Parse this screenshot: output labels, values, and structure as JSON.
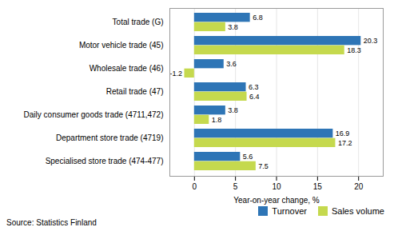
{
  "chart_data": {
    "type": "bar",
    "orientation": "horizontal",
    "categories": [
      "Total trade (G)",
      "Motor vehicle trade (45)",
      "Wholesale trade (46)",
      "Retail trade (47)",
      "Daily consumer goods trade (4711,472)",
      "Department store trade (4719)",
      "Specialised store trade (474-477)"
    ],
    "series": [
      {
        "name": "Turnover",
        "color": "#2e75b6",
        "values": [
          6.8,
          20.3,
          3.6,
          6.3,
          3.8,
          16.9,
          5.6
        ]
      },
      {
        "name": "Sales volume",
        "color": "#c5d94e",
        "values": [
          3.8,
          18.3,
          -1.2,
          6.4,
          1.8,
          17.2,
          7.5
        ]
      }
    ],
    "xlabel": "Year-on-year change, %",
    "xlim": [
      -3,
      23
    ],
    "xticks": [
      0,
      5,
      10,
      15,
      20
    ],
    "grid": true,
    "data_labels": true,
    "legend": "lower right",
    "source": "Source: Statistics Finland"
  }
}
